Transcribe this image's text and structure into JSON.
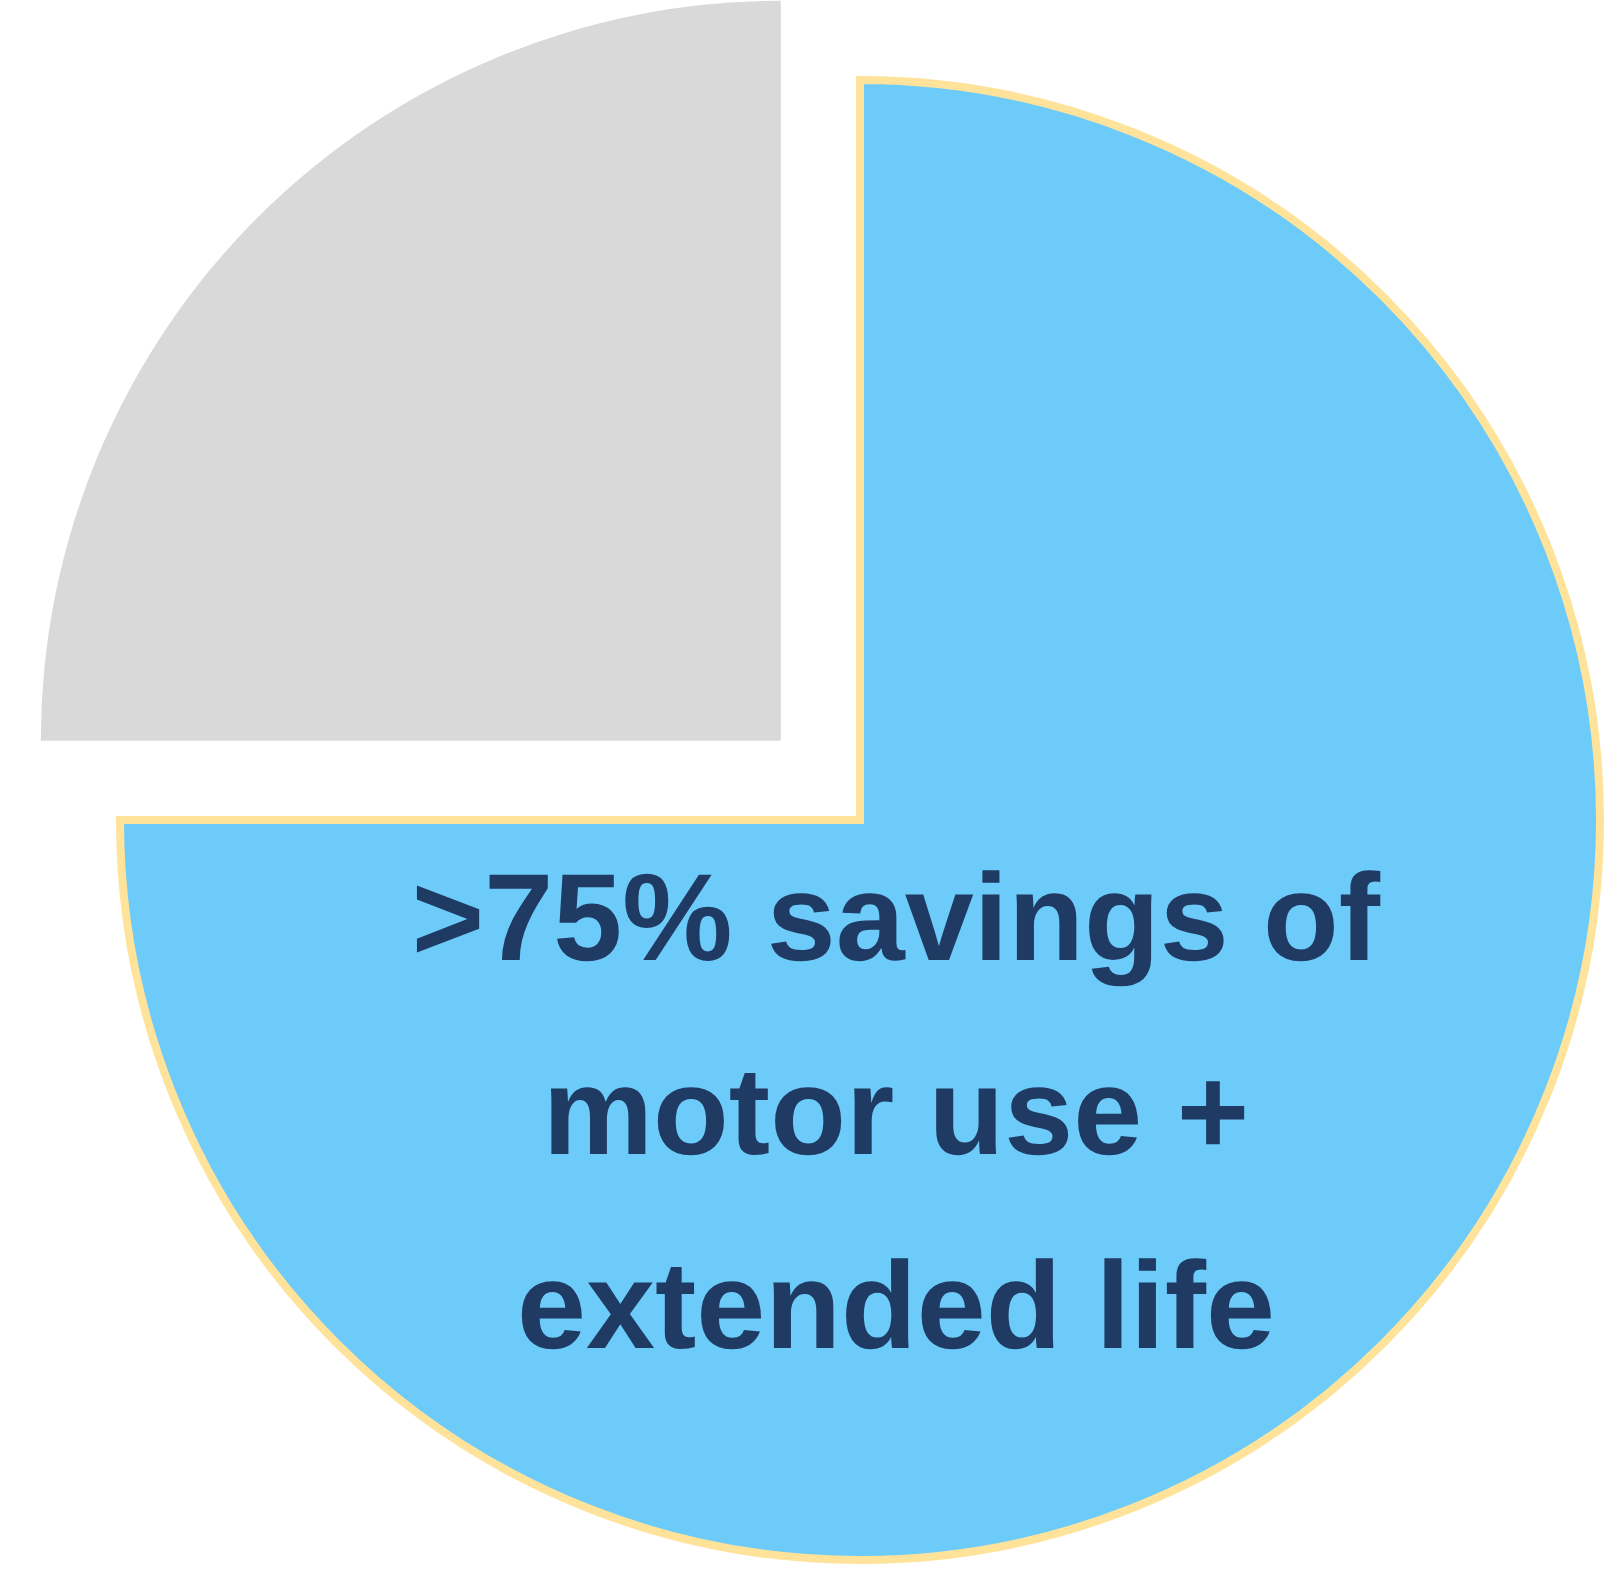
{
  "chart_data": {
    "type": "pie",
    "categories": [
      null,
      null
    ],
    "values": [
      75,
      25
    ],
    "colors": [
      "#6dcbfa",
      "#d9d9d9"
    ],
    "annotations": [
      ">75% savings of motor use + extended life"
    ]
  }
}
